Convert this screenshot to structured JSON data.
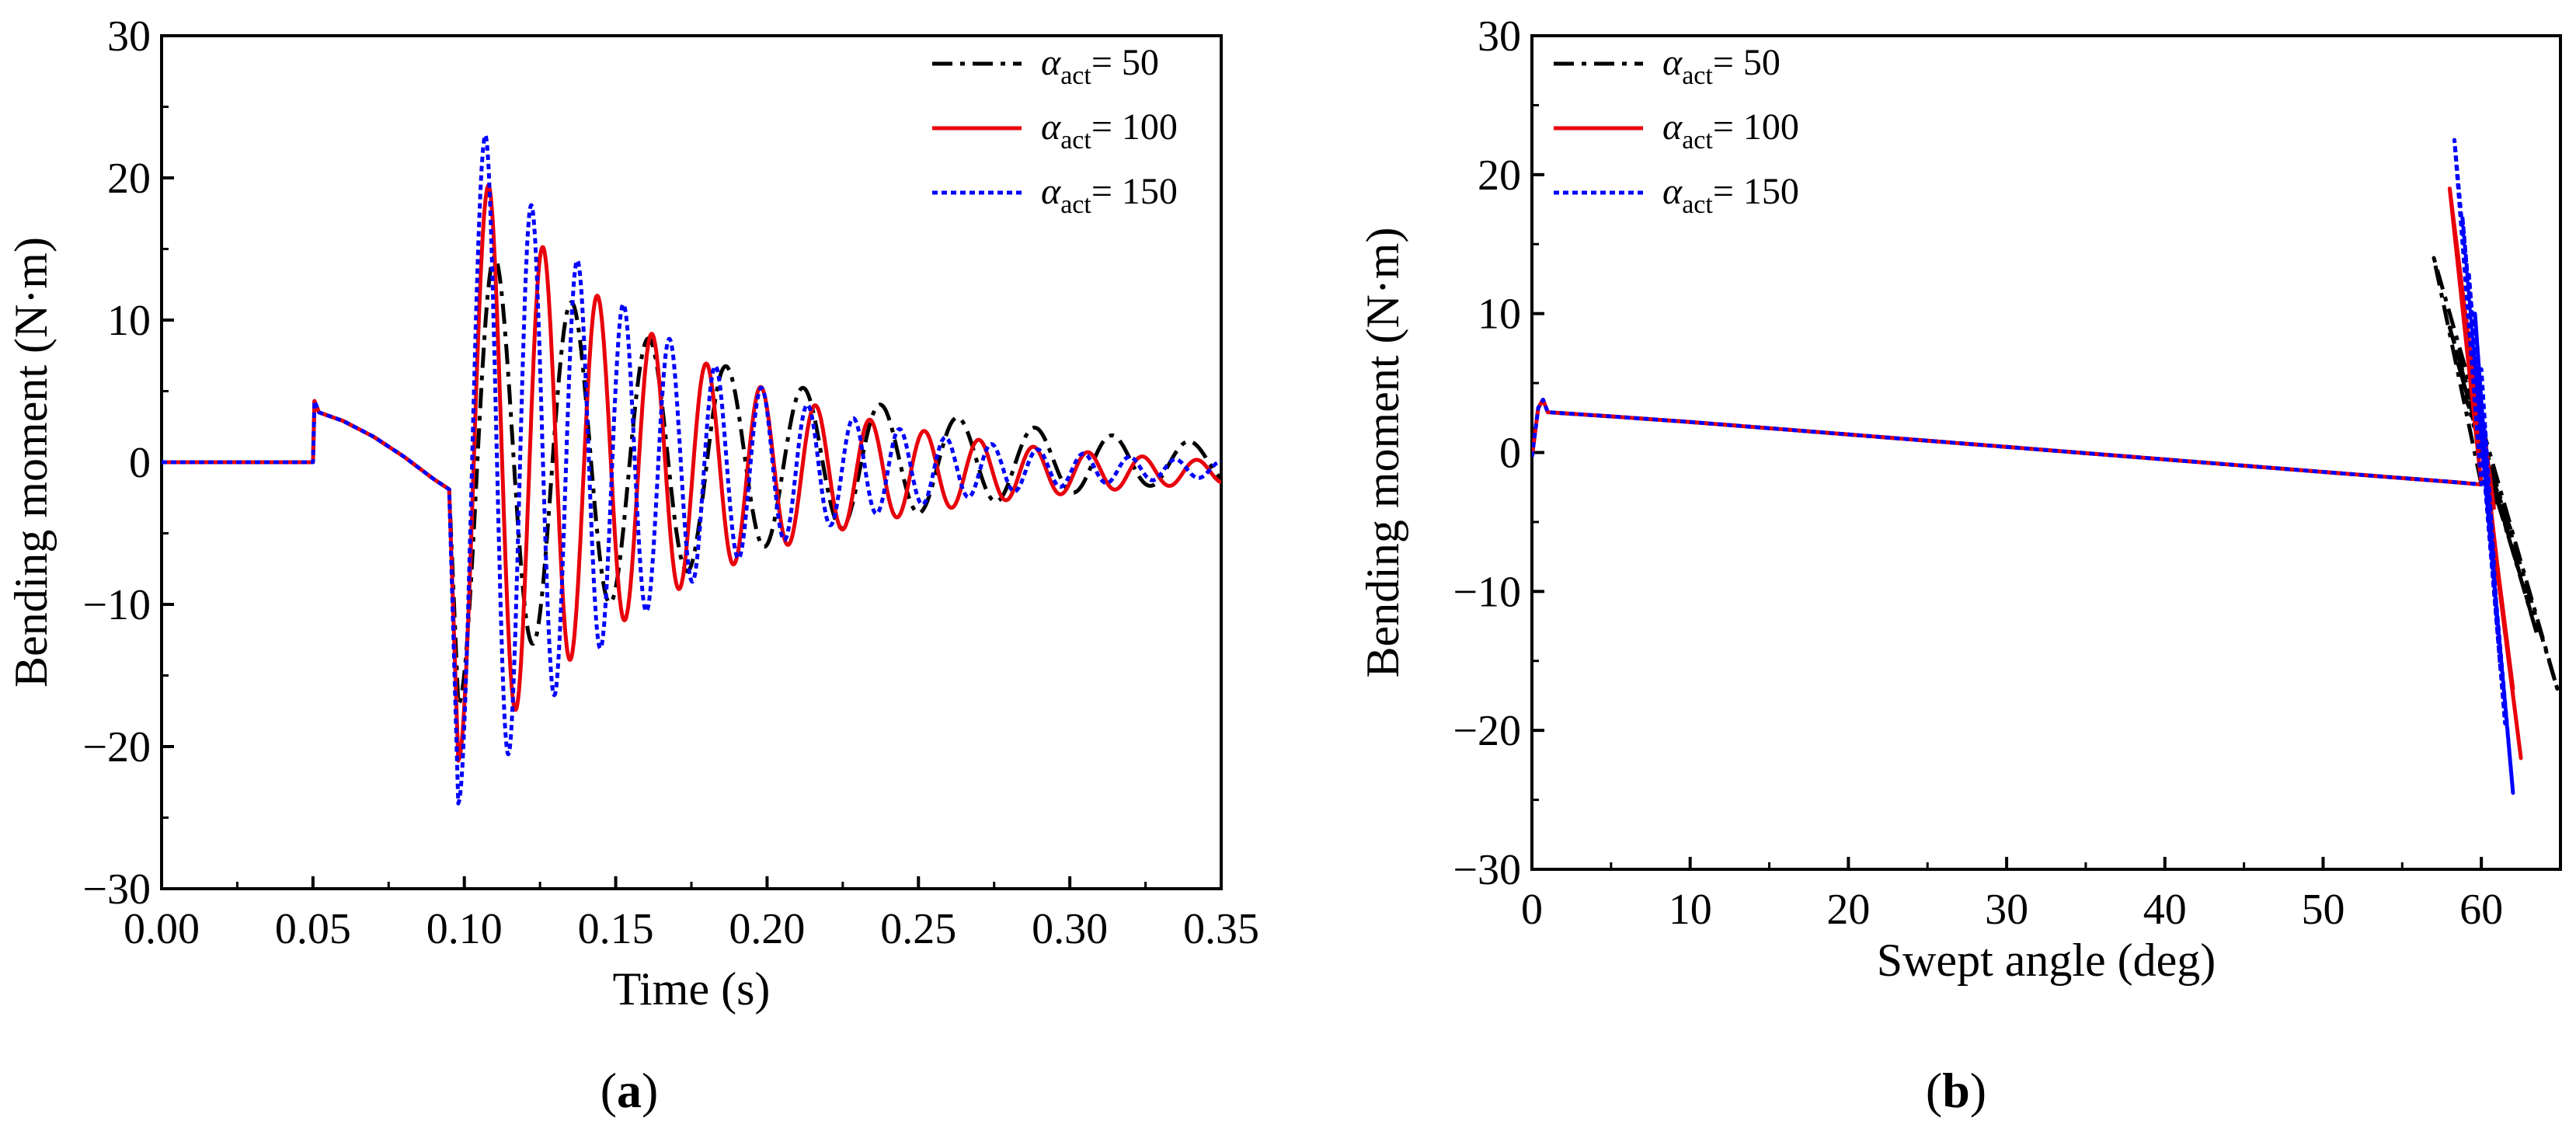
{
  "chart_data": [
    {
      "id": "a",
      "type": "line",
      "panel_label": "(a)",
      "panel_letter": "a",
      "xlabel": "Time (s)",
      "ylabel": "Bending moment (N·m)",
      "xlim": [
        0,
        0.35
      ],
      "ylim": [
        -30,
        30
      ],
      "xticks": [
        0,
        0.05,
        0.1,
        0.15,
        0.2,
        0.25,
        0.3,
        0.35
      ],
      "xtick_labels": [
        "0.00",
        "0.05",
        "0.10",
        "0.15",
        "0.20",
        "0.25",
        "0.30",
        "0.35"
      ],
      "yticks": [
        -30,
        -20,
        -10,
        0,
        10,
        20,
        30
      ],
      "ytick_labels": [
        "−30",
        "−20",
        "−10",
        "0",
        "10",
        "20",
        "30"
      ],
      "legend_position": "top-right",
      "series": [
        {
          "name": "α_act = 50",
          "legend_sub": "act",
          "legend_value": "= 50",
          "color": "#000000",
          "style": "dashdot",
          "model": {
            "t_impact": 0.095,
            "t_min": 0.098,
            "t_first_peak": 0.11,
            "period": 0.0255,
            "first_min": -17,
            "first_max": 14.5,
            "decay": 0.1,
            "end_offset": 0
          }
        },
        {
          "name": "α_act = 100",
          "legend_sub": "act",
          "legend_value": "= 100",
          "color": "#e8000b",
          "style": "solid",
          "model": {
            "t_impact": 0.095,
            "t_min": 0.098,
            "t_first_peak": 0.108,
            "period": 0.018,
            "first_min": -21,
            "first_max": 19.5,
            "decay": 0.075,
            "end_offset": -0.7
          }
        },
        {
          "name": "α_act = 150",
          "legend_sub": "act",
          "legend_value": "= 150",
          "color": "#0000ff",
          "style": "dotted",
          "model": {
            "t_impact": 0.095,
            "t_min": 0.098,
            "t_first_peak": 0.107,
            "period": 0.0152,
            "first_min": -24,
            "first_max": 23,
            "decay": 0.065,
            "end_offset": -0.5
          }
        }
      ],
      "common_prefix": {
        "step_time": 0.05,
        "step_value": 4.3,
        "ramp_points": [
          [
            0.0,
            0.0
          ],
          [
            0.05,
            0.0
          ],
          [
            0.0505,
            4.3
          ],
          [
            0.052,
            3.5
          ],
          [
            0.06,
            2.9
          ],
          [
            0.07,
            1.8
          ],
          [
            0.08,
            0.4
          ],
          [
            0.09,
            -1.2
          ],
          [
            0.095,
            -1.9
          ]
        ]
      }
    },
    {
      "id": "b",
      "type": "line",
      "panel_label": "(b)",
      "panel_letter": "b",
      "xlabel": "Swept angle (deg)",
      "ylabel": "Bending moment (N·m)",
      "xlim": [
        0,
        65
      ],
      "ylim": [
        -30,
        30
      ],
      "xticks": [
        0,
        10,
        20,
        30,
        40,
        50,
        60
      ],
      "xtick_labels": [
        "0",
        "10",
        "20",
        "30",
        "40",
        "50",
        "60"
      ],
      "yticks": [
        -30,
        -20,
        -10,
        0,
        10,
        20,
        30
      ],
      "ytick_labels": [
        "−30",
        "−20",
        "−10",
        "0",
        "10",
        "20",
        "30"
      ],
      "legend_position": "top-left",
      "series": [
        {
          "name": "α_act = 50",
          "legend_sub": "act",
          "legend_value": "= 50",
          "color": "#000000",
          "style": "dashdot",
          "points": [
            [
              0,
              -0.3
            ],
            [
              0.4,
              3.2
            ],
            [
              0.7,
              3.8
            ],
            [
              1,
              2.9
            ],
            [
              5,
              2.6
            ],
            [
              10,
              2.2
            ],
            [
              20,
              1.3
            ],
            [
              30,
              0.4
            ],
            [
              40,
              -0.5
            ],
            [
              50,
              -1.4
            ],
            [
              58,
              -2.1
            ],
            [
              60,
              -2.3
            ]
          ],
          "spikes": [
            [
              57,
              14
            ],
            [
              64.8,
              -17
            ],
            [
              58,
              9
            ],
            [
              63.5,
              -13
            ],
            [
              58.5,
              6.5
            ],
            [
              62.5,
              -9
            ],
            [
              59,
              4
            ],
            [
              62,
              -6
            ],
            [
              59.5,
              2
            ],
            [
              61,
              -4
            ],
            [
              60,
              0
            ],
            [
              60.5,
              -2
            ]
          ]
        },
        {
          "name": "α_act = 100",
          "legend_sub": "act",
          "legend_value": "= 100",
          "color": "#e8000b",
          "style": "solid",
          "points": [
            [
              0,
              -0.3
            ],
            [
              0.4,
              3.2
            ],
            [
              0.7,
              3.8
            ],
            [
              1,
              2.9
            ],
            [
              5,
              2.6
            ],
            [
              10,
              2.2
            ],
            [
              20,
              1.3
            ],
            [
              30,
              0.4
            ],
            [
              40,
              -0.5
            ],
            [
              50,
              -1.4
            ],
            [
              58,
              -2.1
            ],
            [
              60,
              -2.3
            ]
          ],
          "spikes": [
            [
              58,
              19
            ],
            [
              62.5,
              -22
            ],
            [
              58.5,
              14
            ],
            [
              62,
              -17
            ],
            [
              59,
              10
            ],
            [
              61.5,
              -13
            ],
            [
              59.5,
              7
            ],
            [
              61,
              -9
            ],
            [
              60,
              3
            ],
            [
              60.8,
              -4
            ],
            [
              60.3,
              0
            ]
          ]
        },
        {
          "name": "α_act = 150",
          "legend_sub": "act",
          "legend_value": "= 150",
          "color": "#0000ff",
          "style": "dotted",
          "points": [
            [
              0,
              -0.3
            ],
            [
              0.4,
              3.2
            ],
            [
              0.7,
              3.8
            ],
            [
              1,
              2.9
            ],
            [
              5,
              2.6
            ],
            [
              10,
              2.2
            ],
            [
              20,
              1.3
            ],
            [
              30,
              0.4
            ],
            [
              40,
              -0.5
            ],
            [
              50,
              -1.4
            ],
            [
              58,
              -2.1
            ],
            [
              60,
              -2.3
            ]
          ],
          "spikes": [
            [
              58.3,
              22.5
            ],
            [
              62,
              -24.5
            ],
            [
              58.8,
              17
            ],
            [
              61.5,
              -19.5
            ],
            [
              59.2,
              13
            ],
            [
              61.2,
              -15.5
            ],
            [
              59.6,
              10
            ],
            [
              61,
              -12
            ],
            [
              60,
              6
            ],
            [
              60.8,
              -8
            ],
            [
              60.2,
              2
            ],
            [
              60.5,
              -4
            ]
          ]
        }
      ]
    }
  ],
  "colors": {
    "axis": "#000000",
    "background": "#ffffff"
  },
  "alpha_symbol": "α"
}
